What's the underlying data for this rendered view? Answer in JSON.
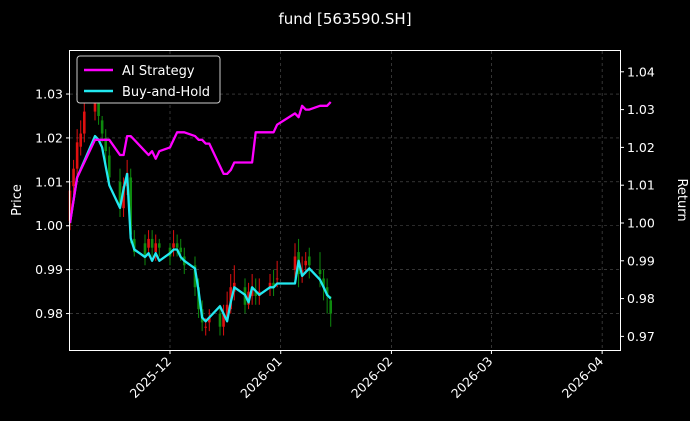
{
  "colors": {
    "background": "#000000",
    "ai_strategy": "#ff00ff",
    "buy_and_hold": "#22e8f0",
    "candle_up": "#e01010",
    "candle_down": "#0e8a0e",
    "grid": "#555555",
    "text": "#ffffff"
  },
  "chart_data": {
    "type": "line",
    "title": "fund [563590.SH]",
    "ylabel_left": "Price",
    "ylabel_right": "Return",
    "left_yticks": [
      "0.98",
      "0.99",
      "1.00",
      "1.01",
      "1.02",
      "1.03"
    ],
    "right_yticks": [
      "0.97",
      "0.98",
      "0.99",
      "1.00",
      "1.01",
      "1.02",
      "1.03",
      "1.04"
    ],
    "xticks": [
      "2025-12",
      "2026-01",
      "2026-02",
      "2026-03",
      "2026-04"
    ],
    "xlim": [
      "2025-11-03",
      "2026-04-06"
    ],
    "ylim_left": [
      0.9717,
      1.0398
    ],
    "ylim_right": [
      0.9664,
      1.0455
    ],
    "grid": true,
    "legend_position": "upper-left",
    "series": [
      {
        "name": "AI Strategy",
        "axis": "right",
        "x": [
          "2025-11-03",
          "2025-11-05",
          "2025-11-10",
          "2025-11-11",
          "2025-11-12",
          "2025-11-13",
          "2025-11-14",
          "2025-11-17",
          "2025-11-18",
          "2025-11-19",
          "2025-11-20",
          "2025-11-21",
          "2025-11-24",
          "2025-11-25",
          "2025-11-26",
          "2025-11-27",
          "2025-11-28",
          "2025-12-01",
          "2025-12-02",
          "2025-12-03",
          "2025-12-04",
          "2025-12-05",
          "2025-12-08",
          "2025-12-09",
          "2025-12-10",
          "2025-12-11",
          "2025-12-12",
          "2025-12-15",
          "2025-12-16",
          "2025-12-17",
          "2025-12-18",
          "2025-12-19",
          "2025-12-22",
          "2025-12-23",
          "2025-12-24",
          "2025-12-25",
          "2025-12-26",
          "2025-12-29",
          "2025-12-30",
          "2025-12-31",
          "2026-01-05",
          "2026-01-06",
          "2026-01-07",
          "2026-01-08",
          "2026-01-09",
          "2026-01-12",
          "2026-01-13",
          "2026-01-14",
          "2026-01-15"
        ],
        "values": [
          1.0,
          1.012,
          1.022,
          1.022,
          1.022,
          1.022,
          1.022,
          1.018,
          1.018,
          1.023,
          1.023,
          1.022,
          1.019,
          1.018,
          1.019,
          1.017,
          1.019,
          1.02,
          1.022,
          1.024,
          1.024,
          1.024,
          1.023,
          1.022,
          1.022,
          1.021,
          1.021,
          1.015,
          1.013,
          1.013,
          1.014,
          1.016,
          1.016,
          1.016,
          1.016,
          1.024,
          1.024,
          1.024,
          1.024,
          1.026,
          1.029,
          1.028,
          1.031,
          1.03,
          1.03,
          1.031,
          1.031,
          1.031,
          1.032
        ]
      },
      {
        "name": "Buy-and-Hold",
        "axis": "right",
        "x": [
          "2025-11-03",
          "2025-11-05",
          "2025-11-10",
          "2025-11-11",
          "2025-11-12",
          "2025-11-13",
          "2025-11-14",
          "2025-11-17",
          "2025-11-18",
          "2025-11-19",
          "2025-11-20",
          "2025-11-21",
          "2025-11-24",
          "2025-11-25",
          "2025-11-26",
          "2025-11-27",
          "2025-11-28",
          "2025-12-01",
          "2025-12-02",
          "2025-12-03",
          "2025-12-04",
          "2025-12-05",
          "2025-12-08",
          "2025-12-09",
          "2025-12-10",
          "2025-12-11",
          "2025-12-12",
          "2025-12-15",
          "2025-12-16",
          "2025-12-17",
          "2025-12-18",
          "2025-12-19",
          "2025-12-22",
          "2025-12-23",
          "2025-12-24",
          "2025-12-25",
          "2025-12-26",
          "2025-12-29",
          "2025-12-30",
          "2025-12-31",
          "2026-01-05",
          "2026-01-06",
          "2026-01-07",
          "2026-01-08",
          "2026-01-09",
          "2026-01-12",
          "2026-01-13",
          "2026-01-14",
          "2026-01-15"
        ],
        "values": [
          1.0,
          1.012,
          1.023,
          1.022,
          1.02,
          1.015,
          1.01,
          1.004,
          1.009,
          1.013,
          0.996,
          0.993,
          0.991,
          0.992,
          0.99,
          0.992,
          0.99,
          0.992,
          0.993,
          0.993,
          0.991,
          0.99,
          0.988,
          0.982,
          0.975,
          0.974,
          0.975,
          0.978,
          0.976,
          0.974,
          0.979,
          0.983,
          0.981,
          0.979,
          0.983,
          0.982,
          0.981,
          0.983,
          0.983,
          0.984,
          0.984,
          0.99,
          0.986,
          0.987,
          0.988,
          0.985,
          0.983,
          0.981,
          0.98
        ]
      },
      {
        "name": "Price (candles)",
        "axis": "left",
        "x": [
          "2025-11-03",
          "2025-11-04",
          "2025-11-05",
          "2025-11-06",
          "2025-11-07",
          "2025-11-10",
          "2025-11-11",
          "2025-11-12",
          "2025-11-13",
          "2025-11-14",
          "2025-11-17",
          "2025-11-18",
          "2025-11-19",
          "2025-11-20",
          "2025-11-21",
          "2025-11-24",
          "2025-11-25",
          "2025-11-26",
          "2025-11-27",
          "2025-11-28",
          "2025-12-01",
          "2025-12-02",
          "2025-12-03",
          "2025-12-04",
          "2025-12-05",
          "2025-12-08",
          "2025-12-09",
          "2025-12-10",
          "2025-12-11",
          "2025-12-12",
          "2025-12-15",
          "2025-12-16",
          "2025-12-17",
          "2025-12-18",
          "2025-12-19",
          "2025-12-22",
          "2025-12-23",
          "2025-12-24",
          "2025-12-25",
          "2025-12-26",
          "2025-12-29",
          "2025-12-30",
          "2025-12-31",
          "2026-01-05",
          "2026-01-06",
          "2026-01-07",
          "2026-01-08",
          "2026-01-09",
          "2026-01-12",
          "2026-01-13",
          "2026-01-14",
          "2026-01-15"
        ],
        "open": [
          1.001,
          1.009,
          1.013,
          1.018,
          1.021,
          1.026,
          1.028,
          1.024,
          1.02,
          1.016,
          1.01,
          1.004,
          1.009,
          1.011,
          0.997,
          0.996,
          0.995,
          0.997,
          0.994,
          0.996,
          0.995,
          0.995,
          0.996,
          0.995,
          0.993,
          0.991,
          0.986,
          0.981,
          0.977,
          0.978,
          0.98,
          0.977,
          0.979,
          0.981,
          0.985,
          0.986,
          0.982,
          0.984,
          0.985,
          0.984,
          0.986,
          0.987,
          0.988,
          0.99,
          0.994,
          0.989,
          0.991,
          0.993,
          0.99,
          0.988,
          0.986,
          0.983
        ],
        "close": [
          1.008,
          1.013,
          1.019,
          1.021,
          1.026,
          1.029,
          1.025,
          1.021,
          1.017,
          1.011,
          1.005,
          1.009,
          1.012,
          0.998,
          0.994,
          0.993,
          0.997,
          0.995,
          0.996,
          0.995,
          0.993,
          0.996,
          0.995,
          0.994,
          0.991,
          0.986,
          0.981,
          0.978,
          0.977,
          0.979,
          0.977,
          0.98,
          0.982,
          0.986,
          0.987,
          0.982,
          0.985,
          0.986,
          0.984,
          0.985,
          0.987,
          0.986,
          0.988,
          0.993,
          0.989,
          0.99,
          0.992,
          0.991,
          0.989,
          0.986,
          0.984,
          0.98
        ],
        "high": [
          1.01,
          1.015,
          1.022,
          1.024,
          1.03,
          1.033,
          1.031,
          1.025,
          1.022,
          1.018,
          1.013,
          1.011,
          1.015,
          1.013,
          0.999,
          0.998,
          0.999,
          0.999,
          0.998,
          0.997,
          0.996,
          0.999,
          0.998,
          0.997,
          0.995,
          0.993,
          0.988,
          0.983,
          0.979,
          0.981,
          0.982,
          0.982,
          0.985,
          0.989,
          0.991,
          0.988,
          0.987,
          0.989,
          0.988,
          0.988,
          0.989,
          0.99,
          0.992,
          0.996,
          0.997,
          0.993,
          0.994,
          0.995,
          0.994,
          0.99,
          0.988,
          0.984
        ],
        "low": [
          0.999,
          1.006,
          1.011,
          1.016,
          1.019,
          1.024,
          1.023,
          1.019,
          1.014,
          1.009,
          1.002,
          1.002,
          1.007,
          0.996,
          0.993,
          0.991,
          0.993,
          0.993,
          0.992,
          0.993,
          0.991,
          0.993,
          0.993,
          0.992,
          0.989,
          0.984,
          0.979,
          0.976,
          0.975,
          0.976,
          0.975,
          0.975,
          0.978,
          0.98,
          0.983,
          0.98,
          0.981,
          0.982,
          0.982,
          0.982,
          0.984,
          0.984,
          0.986,
          0.988,
          0.986,
          0.987,
          0.989,
          0.988,
          0.986,
          0.983,
          0.98,
          0.977
        ]
      }
    ]
  },
  "legend": {
    "items": [
      {
        "label": "AI Strategy",
        "color": "#ff00ff"
      },
      {
        "label": "Buy-and-Hold",
        "color": "#22e8f0"
      }
    ]
  }
}
